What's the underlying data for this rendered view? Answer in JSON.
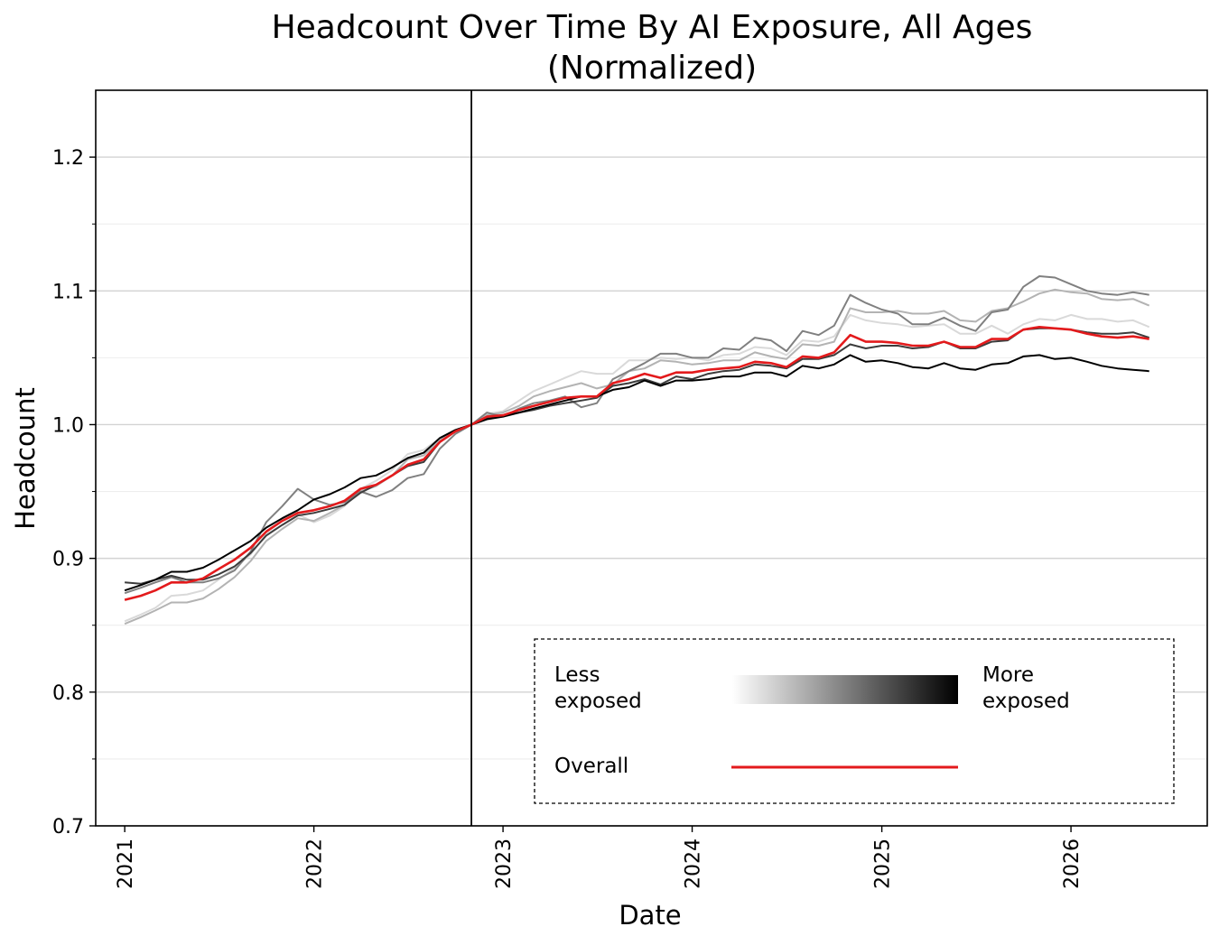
{
  "chart_data": {
    "type": "line",
    "title": "Headcount Over Time By AI Exposure, All Ages\n(Normalized)",
    "title_lines": [
      "Headcount Over Time By AI Exposure, All Ages",
      "(Normalized)"
    ],
    "xlabel": "Date",
    "ylabel": "Headcount",
    "xlim": [
      "2020-11-06",
      "2026-09-21"
    ],
    "ylim": [
      0.7,
      1.25
    ],
    "x_ticks": [
      "2021",
      "2022",
      "2023",
      "2024",
      "2025",
      "2026"
    ],
    "y_ticks": [
      0.7,
      0.8,
      0.9,
      1.0,
      1.1,
      1.2
    ],
    "y_minor_ticks": [
      0.75,
      0.85,
      0.95,
      1.05,
      1.15
    ],
    "grid": true,
    "reference_line_x": "2022-11-01",
    "legend": {
      "placement": "bottom-right",
      "gradient_left": "Less\nexposed",
      "gradient_left_lines": [
        "Less",
        "exposed"
      ],
      "gradient_right": "More\nexposed",
      "gradient_right_lines": [
        "More",
        "exposed"
      ],
      "overall_label": "Overall"
    },
    "x": [
      "2021-01",
      "2021-02",
      "2021-03",
      "2021-04",
      "2021-05",
      "2021-06",
      "2021-07",
      "2021-08",
      "2021-09",
      "2021-10",
      "2021-11",
      "2021-12",
      "2022-01",
      "2022-02",
      "2022-03",
      "2022-04",
      "2022-05",
      "2022-06",
      "2022-07",
      "2022-08",
      "2022-09",
      "2022-10",
      "2022-11",
      "2022-12",
      "2023-01",
      "2023-02",
      "2023-03",
      "2023-04",
      "2023-05",
      "2023-06",
      "2023-07",
      "2023-08",
      "2023-09",
      "2023-10",
      "2023-11",
      "2023-12",
      "2024-01",
      "2024-02",
      "2024-03",
      "2024-04",
      "2024-05",
      "2024-06",
      "2024-07",
      "2024-08",
      "2024-09",
      "2024-10",
      "2024-11",
      "2024-12",
      "2025-01",
      "2025-02",
      "2025-03",
      "2025-04",
      "2025-05",
      "2025-06",
      "2025-07",
      "2025-08",
      "2025-09",
      "2025-10",
      "2025-11",
      "2025-12",
      "2026-01",
      "2026-02",
      "2026-03",
      "2026-04",
      "2026-05",
      "2026-06"
    ],
    "series": [
      {
        "color": "#d9d9d9",
        "values": [
          0.853,
          0.858,
          0.863,
          0.872,
          0.873,
          0.876,
          0.884,
          0.893,
          0.903,
          0.918,
          0.925,
          0.933,
          0.927,
          0.932,
          0.939,
          0.952,
          0.958,
          0.966,
          0.978,
          0.981,
          0.99,
          0.996,
          1.0,
          1.008,
          1.01,
          1.018,
          1.025,
          1.03,
          1.035,
          1.04,
          1.038,
          1.038,
          1.048,
          1.048,
          1.05,
          1.049,
          1.05,
          1.048,
          1.052,
          1.053,
          1.058,
          1.057,
          1.052,
          1.063,
          1.062,
          1.066,
          1.082,
          1.078,
          1.076,
          1.075,
          1.073,
          1.074,
          1.075,
          1.068,
          1.068,
          1.074,
          1.068,
          1.075,
          1.079,
          1.078,
          1.082,
          1.079,
          1.079,
          1.077,
          1.078,
          1.073
        ]
      },
      {
        "color": "#b3b3b3",
        "values": [
          0.851,
          0.856,
          0.861,
          0.867,
          0.867,
          0.87,
          0.877,
          0.886,
          0.898,
          0.913,
          0.922,
          0.93,
          0.928,
          0.934,
          0.94,
          0.95,
          0.954,
          0.962,
          0.974,
          0.977,
          0.988,
          0.996,
          1.0,
          1.007,
          1.009,
          1.014,
          1.021,
          1.025,
          1.028,
          1.031,
          1.027,
          1.03,
          1.04,
          1.042,
          1.048,
          1.047,
          1.045,
          1.046,
          1.048,
          1.048,
          1.054,
          1.051,
          1.049,
          1.06,
          1.059,
          1.062,
          1.087,
          1.084,
          1.084,
          1.085,
          1.083,
          1.083,
          1.085,
          1.078,
          1.077,
          1.085,
          1.087,
          1.092,
          1.098,
          1.101,
          1.099,
          1.098,
          1.094,
          1.093,
          1.094,
          1.089
        ]
      },
      {
        "color": "#808080",
        "values": [
          0.874,
          0.878,
          0.882,
          0.886,
          0.882,
          0.882,
          0.885,
          0.891,
          0.905,
          0.927,
          0.939,
          0.952,
          0.944,
          0.94,
          0.942,
          0.95,
          0.946,
          0.951,
          0.96,
          0.963,
          0.982,
          0.993,
          1.0,
          1.009,
          1.006,
          1.012,
          1.016,
          1.018,
          1.021,
          1.013,
          1.016,
          1.034,
          1.04,
          1.046,
          1.053,
          1.053,
          1.05,
          1.05,
          1.057,
          1.056,
          1.065,
          1.063,
          1.055,
          1.07,
          1.067,
          1.074,
          1.097,
          1.091,
          1.086,
          1.083,
          1.075,
          1.075,
          1.08,
          1.074,
          1.07,
          1.084,
          1.086,
          1.103,
          1.111,
          1.11,
          1.105,
          1.1,
          1.098,
          1.097,
          1.099,
          1.097
        ]
      },
      {
        "color": "#3c3c3c",
        "values": [
          0.882,
          0.881,
          0.884,
          0.887,
          0.884,
          0.884,
          0.888,
          0.894,
          0.904,
          0.917,
          0.925,
          0.932,
          0.934,
          0.937,
          0.94,
          0.949,
          0.955,
          0.962,
          0.969,
          0.972,
          0.987,
          0.995,
          1.0,
          1.005,
          1.007,
          1.009,
          1.011,
          1.014,
          1.016,
          1.018,
          1.02,
          1.029,
          1.031,
          1.034,
          1.03,
          1.036,
          1.034,
          1.038,
          1.04,
          1.041,
          1.045,
          1.044,
          1.042,
          1.049,
          1.049,
          1.052,
          1.06,
          1.057,
          1.059,
          1.059,
          1.057,
          1.058,
          1.062,
          1.057,
          1.057,
          1.062,
          1.063,
          1.071,
          1.072,
          1.072,
          1.071,
          1.069,
          1.068,
          1.068,
          1.069,
          1.065
        ]
      },
      {
        "color": "#000000",
        "values": [
          0.876,
          0.88,
          0.884,
          0.89,
          0.89,
          0.893,
          0.899,
          0.906,
          0.913,
          0.923,
          0.93,
          0.936,
          0.944,
          0.948,
          0.953,
          0.96,
          0.962,
          0.968,
          0.975,
          0.979,
          0.99,
          0.996,
          1.0,
          1.004,
          1.006,
          1.009,
          1.012,
          1.015,
          1.018,
          1.021,
          1.021,
          1.026,
          1.028,
          1.033,
          1.029,
          1.033,
          1.033,
          1.034,
          1.036,
          1.036,
          1.039,
          1.039,
          1.036,
          1.044,
          1.042,
          1.045,
          1.052,
          1.047,
          1.048,
          1.046,
          1.043,
          1.042,
          1.046,
          1.042,
          1.041,
          1.045,
          1.046,
          1.051,
          1.052,
          1.049,
          1.05,
          1.047,
          1.044,
          1.042,
          1.041,
          1.04
        ]
      },
      {
        "name": "Overall",
        "color": "#e31a1c",
        "values": [
          0.869,
          0.872,
          0.876,
          0.882,
          0.882,
          0.885,
          0.892,
          0.899,
          0.908,
          0.92,
          0.928,
          0.934,
          0.936,
          0.939,
          0.943,
          0.952,
          0.955,
          0.962,
          0.97,
          0.974,
          0.987,
          0.995,
          1.0,
          1.006,
          1.007,
          1.011,
          1.014,
          1.017,
          1.02,
          1.021,
          1.021,
          1.031,
          1.034,
          1.038,
          1.035,
          1.039,
          1.039,
          1.041,
          1.042,
          1.043,
          1.047,
          1.046,
          1.043,
          1.051,
          1.05,
          1.054,
          1.067,
          1.062,
          1.062,
          1.061,
          1.059,
          1.059,
          1.062,
          1.058,
          1.058,
          1.064,
          1.064,
          1.071,
          1.073,
          1.072,
          1.071,
          1.068,
          1.066,
          1.065,
          1.066,
          1.064
        ]
      }
    ]
  }
}
